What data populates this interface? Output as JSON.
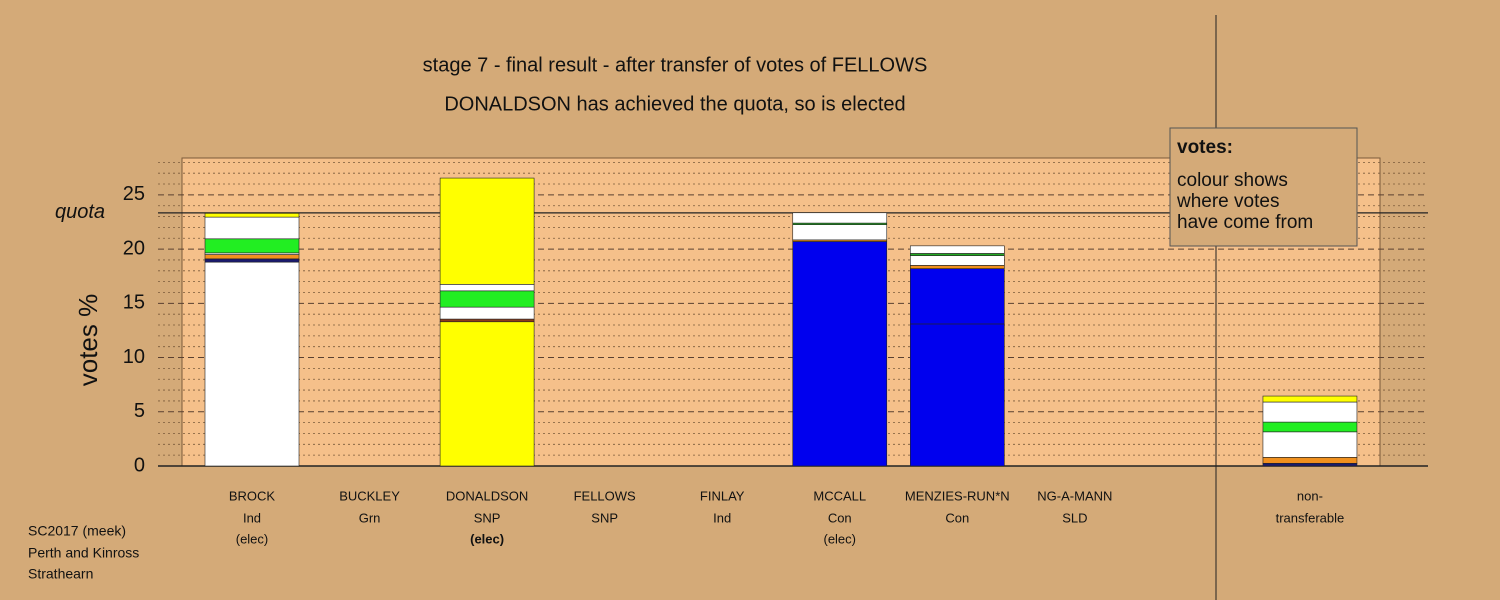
{
  "chart_data": {
    "type": "stacked-bar",
    "title": "stage 7 - final result - after transfer of votes of FELLOWS",
    "subtitle": "DONALDSON has achieved the quota, so is elected",
    "ylabel": "votes %",
    "quota": 23.34,
    "quota_label": "quota",
    "categories": [
      "BROCK",
      "BUCKLEY",
      "DONALDSON",
      "FELLOWS",
      "FINLAY",
      "MCCALL",
      "MENZIES-RUN*N",
      "NG-A-MANN",
      null,
      "non-"
    ],
    "parties": [
      "Ind",
      "Grn",
      "SNP",
      "SNP",
      "Ind",
      "Con",
      "Con",
      "SLD",
      null,
      "transferable"
    ],
    "status": [
      "(elec)",
      null,
      "(elec)",
      null,
      null,
      "(elec)",
      null,
      null,
      null,
      null
    ],
    "highlight_category": 2,
    "stacks": [
      [
        {
          "color": "#ffffff",
          "value": 18.8
        },
        {
          "color": "#1a1a6e",
          "value": 0.3
        },
        {
          "color": "#f0901e",
          "value": 0.4
        },
        {
          "color": "#ffffff",
          "value": 0.15
        },
        {
          "color": "#22ee22",
          "value": 1.3
        },
        {
          "color": "#ffffff",
          "value": 2.0
        },
        {
          "color": "#ffff00",
          "value": 0.35
        }
      ],
      [],
      [
        {
          "color": "#ffff00",
          "value": 13.3
        },
        {
          "color": "#8b3a1a",
          "value": 0.25
        },
        {
          "color": "#ffffff",
          "value": 1.1
        },
        {
          "color": "#22ee22",
          "value": 1.5
        },
        {
          "color": "#ffffff",
          "value": 0.6
        },
        {
          "color": "#ffff00",
          "value": 9.8
        }
      ],
      [],
      [],
      [
        {
          "color": "#0000ee",
          "value": 20.7
        },
        {
          "color": "#f0901e",
          "value": 0.15
        },
        {
          "color": "#ffffff",
          "value": 1.4
        },
        {
          "color": "#22aa22",
          "value": 0.15
        },
        {
          "color": "#ffffff",
          "value": 0.95
        }
      ],
      [
        {
          "color": "#0000ee",
          "value": 13.1
        },
        {
          "color": "#0000ee",
          "value": 5.1
        },
        {
          "color": "#f0901e",
          "value": 0.3
        },
        {
          "color": "#ffffff",
          "value": 0.9
        },
        {
          "color": "#22aa22",
          "value": 0.2
        },
        {
          "color": "#ffffff",
          "value": 0.7
        }
      ],
      [],
      [],
      [
        {
          "color": "#1a1a6e",
          "value": 0.25
        },
        {
          "color": "#f0901e",
          "value": 0.55
        },
        {
          "color": "#ffffff",
          "value": 2.35
        },
        {
          "color": "#22ee22",
          "value": 0.9
        },
        {
          "color": "#ffffff",
          "value": 1.85
        },
        {
          "color": "#ffff00",
          "value": 0.55
        }
      ]
    ],
    "ylim": [
      0,
      28.4
    ],
    "yticks": [
      0,
      5,
      10,
      15,
      20,
      25
    ],
    "minor_yticks": [
      1,
      2,
      3,
      4,
      6,
      7,
      8,
      9,
      11,
      12,
      13,
      14,
      16,
      17,
      18,
      19,
      21,
      22,
      23,
      24,
      26,
      27,
      28
    ],
    "legend_title": "votes:",
    "legend_lines": [
      "colour shows",
      "where votes",
      "have come from"
    ],
    "footer": [
      "SC2017 (meek)",
      "Perth and Kinross",
      "Strathearn"
    ]
  }
}
